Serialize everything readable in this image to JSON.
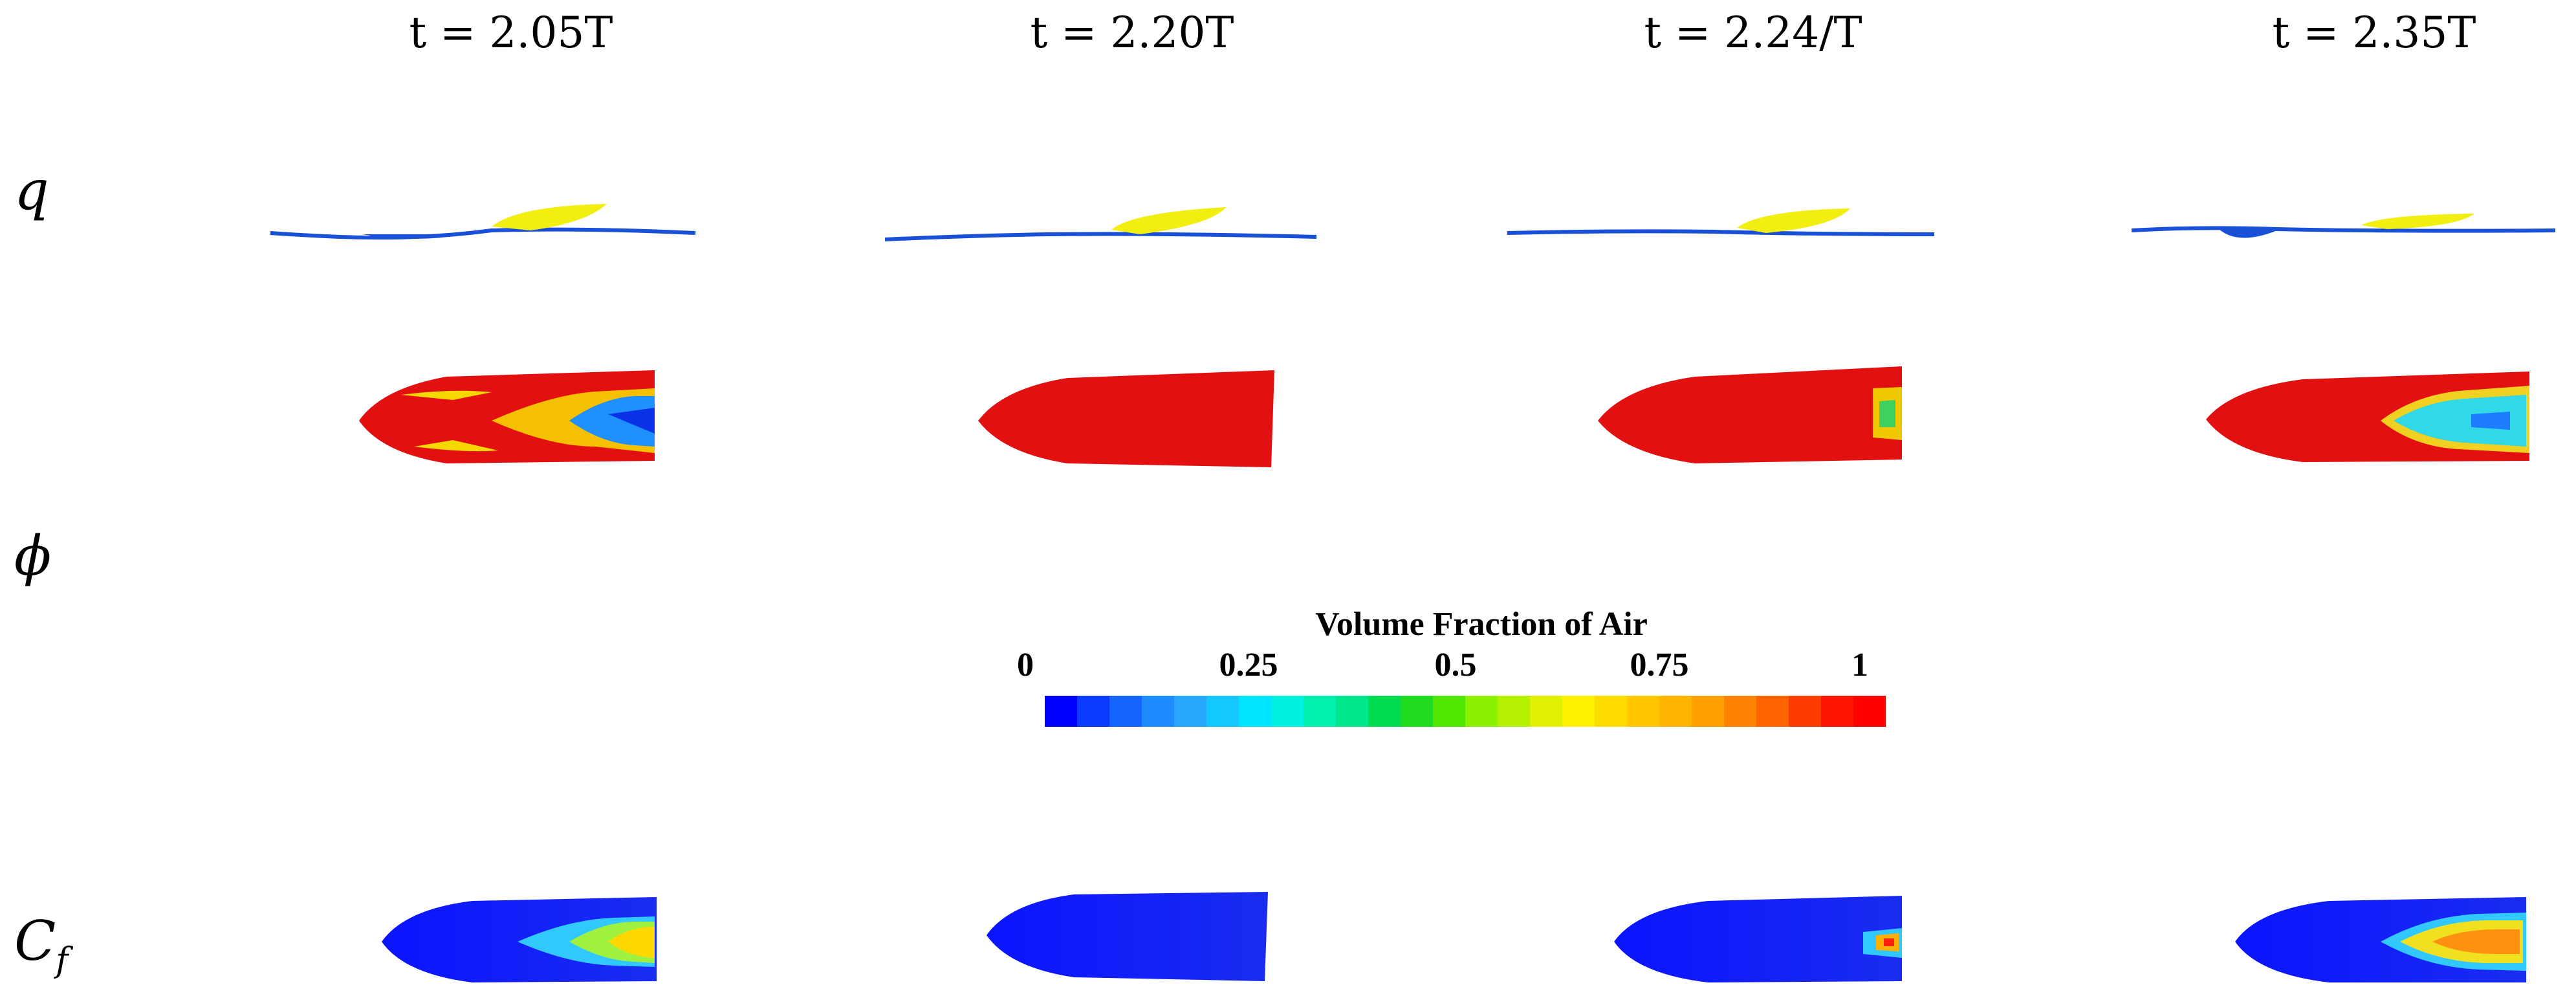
{
  "columns": [
    {
      "time": "t = 2.05T"
    },
    {
      "time": "t = 2.20T"
    },
    {
      "time": "t = 2.24/T"
    },
    {
      "time": "t = 2.35T"
    }
  ],
  "rows": {
    "q": "q",
    "phi": "ϕ",
    "cf_base": "C",
    "cf_sub": "f"
  },
  "colorbar": {
    "title": "Volume Fraction of Air",
    "ticks": [
      "0",
      "0.25",
      "0.5",
      "0.75",
      "1"
    ],
    "colors": [
      "#0000ff",
      "#0a3cff",
      "#1464ff",
      "#1e8cff",
      "#28a8ff",
      "#14c8ff",
      "#00e6ff",
      "#00f0e0",
      "#00f0b0",
      "#00e68c",
      "#00dc50",
      "#20dc20",
      "#50e600",
      "#8cf000",
      "#b4f000",
      "#e0f000",
      "#fff000",
      "#ffdc00",
      "#ffc800",
      "#ffb400",
      "#ffa000",
      "#ff8200",
      "#ff6400",
      "#ff3c00",
      "#ff1400",
      "#ff0000"
    ]
  }
}
